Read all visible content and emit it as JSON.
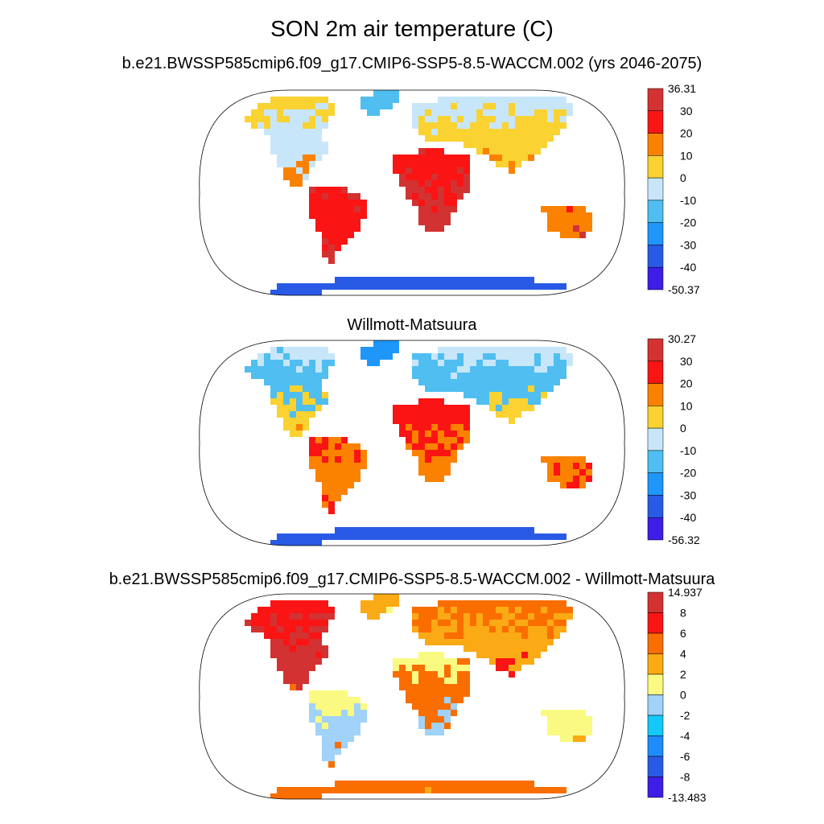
{
  "title": "SON 2m air temperature (C)",
  "panels": [
    {
      "subtitle": "b.e21.BWSSP585cmip6.f09_g17.CMIP6-SSP5-8.5-WACCM.002 (yrs 2046-2075)",
      "colorbar": {
        "labels": [
          "36.31",
          "30",
          "20",
          "10",
          "0",
          "-10",
          "-20",
          "-30",
          "-40",
          "-50.37"
        ],
        "colors": [
          "#d33232",
          "#fa1414",
          "#fa8200",
          "#fad232",
          "#c8e6fa",
          "#50bef0",
          "#1e96fa",
          "#285ae6",
          "#3c1ee6"
        ]
      }
    },
    {
      "subtitle": "Willmott-Matsuura",
      "colorbar": {
        "labels": [
          "30.27",
          "30",
          "20",
          "10",
          "0",
          "-10",
          "-20",
          "-30",
          "-40",
          "-56.32"
        ],
        "colors": [
          "#d33232",
          "#fa1414",
          "#fa8200",
          "#fad232",
          "#c8e6fa",
          "#50bef0",
          "#1e96fa",
          "#285ae6",
          "#3c1ee6"
        ]
      }
    },
    {
      "subtitle": "b.e21.BWSSP585cmip6.f09_g17.CMIP6-SSP5-8.5-WACCM.002 - Willmott-Matsuura",
      "colorbar": {
        "labels": [
          "14.937",
          "8",
          "6",
          "4",
          "2",
          "0",
          "-2",
          "-4",
          "-6",
          "-8",
          "-13.483"
        ],
        "colors": [
          "#d33232",
          "#fa1414",
          "#fa6e00",
          "#faaa14",
          "#fafa82",
          "#a0d2fa",
          "#14c8fa",
          "#1e8cfa",
          "#285ae6",
          "#3c1ee6"
        ]
      }
    }
  ]
}
